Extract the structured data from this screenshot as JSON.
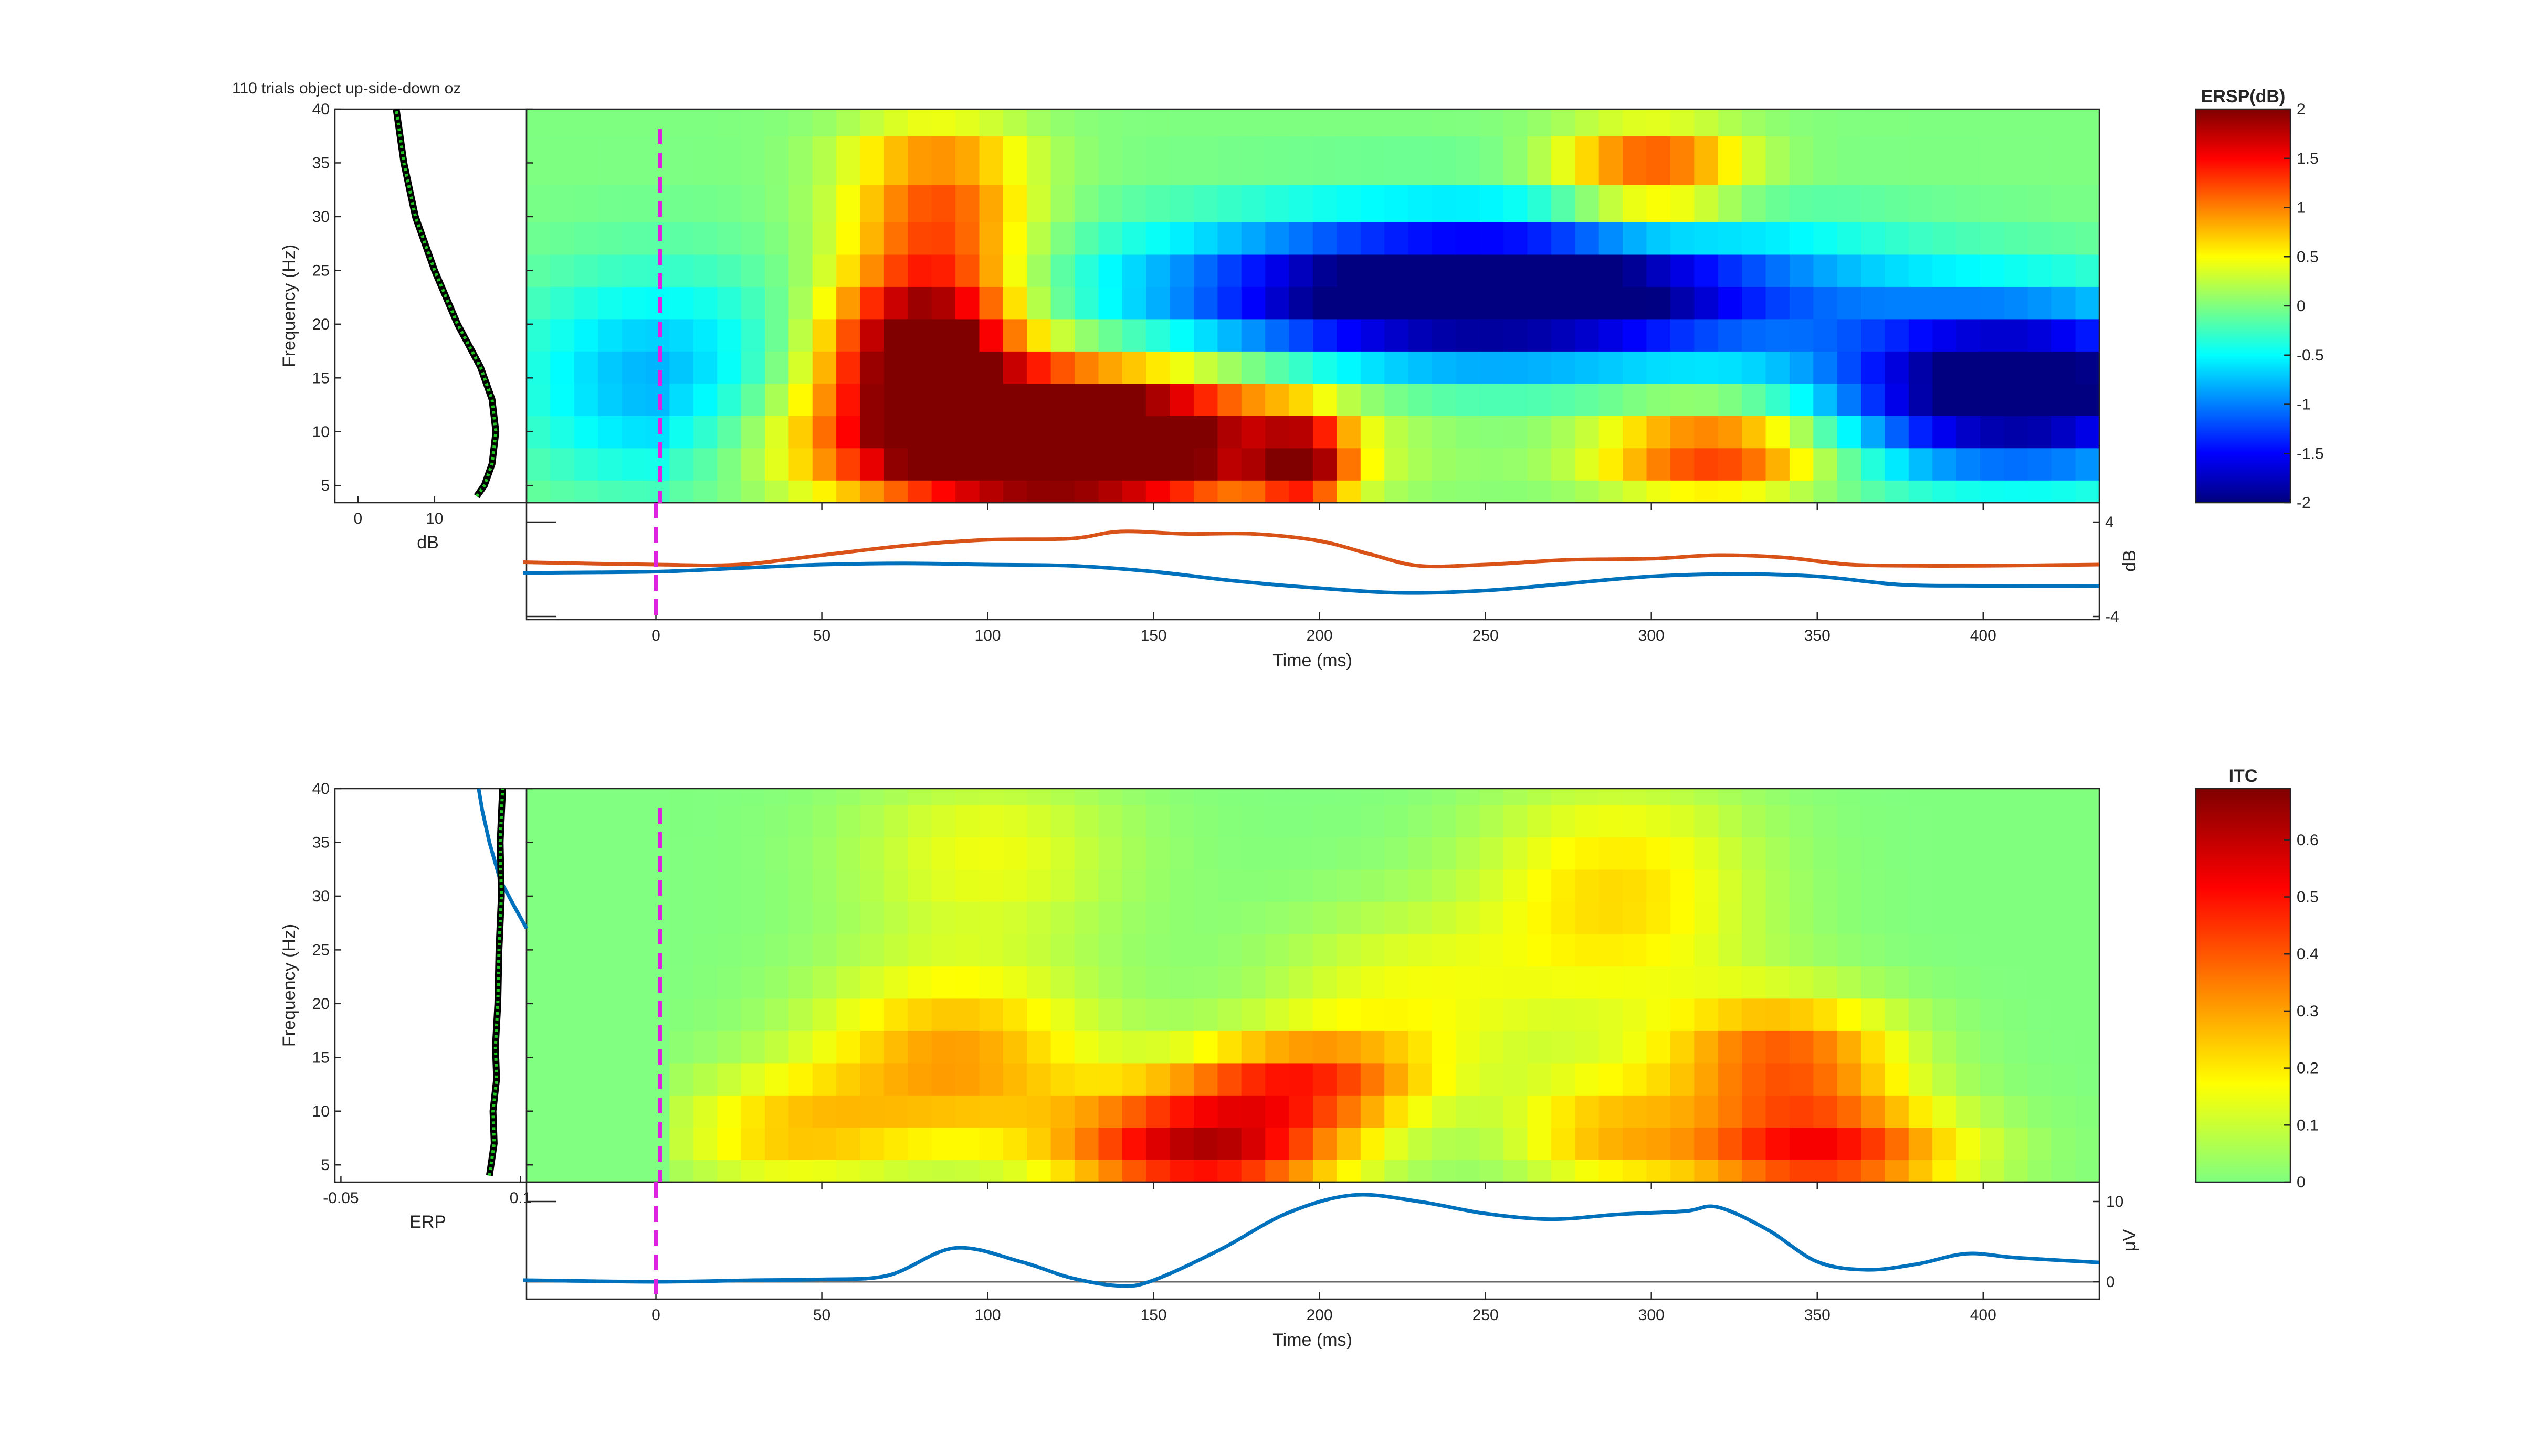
{
  "figure": {
    "title": "110 trials object up-side-down oz",
    "colors": {
      "baseline_marker": "#e020e0",
      "mean_dB_line": "#d95319",
      "mean_trace_line": "#0072bd",
      "marginal_line": "#000000",
      "marginal_dots": "#22c822"
    }
  },
  "ersp_panel": {
    "ylabel": "Frequency (Hz)",
    "yticks": [
      "40",
      "35",
      "30",
      "25",
      "20",
      "15",
      "10",
      "5"
    ],
    "colorbar": {
      "title": "ERSP(dB)",
      "ticks": [
        "2",
        "1.5",
        "1",
        "0.5",
        "0",
        "-0.5",
        "-1",
        "-1.5",
        "-2"
      ],
      "range": [
        -2,
        2
      ],
      "colormap": "jet"
    },
    "marginal": {
      "xlabel": "dB",
      "xticks": [
        "0",
        "10"
      ],
      "xrange": [
        -3,
        22
      ],
      "freqs": [
        4,
        5,
        7,
        10,
        13,
        16,
        20,
        25,
        30,
        35,
        40
      ],
      "values": [
        15.5,
        16.5,
        17.5,
        18,
        17.5,
        16,
        13,
        10,
        7.5,
        6,
        5
      ]
    },
    "trace": {
      "xlabel": "Time (ms)",
      "ylabel": "dB",
      "yticks": [
        "4",
        "-4"
      ],
      "yrange": [
        -4,
        4
      ],
      "upper_line": {
        "t": [
          -40,
          0,
          25,
          50,
          75,
          100,
          125,
          140,
          160,
          180,
          200,
          215,
          230,
          250,
          275,
          300,
          320,
          340,
          360,
          380,
          400,
          435
        ],
        "v": [
          0.6,
          0.4,
          0.4,
          1.2,
          2.0,
          2.5,
          2.6,
          3.2,
          3.0,
          3.0,
          2.4,
          1.3,
          0.3,
          0.4,
          0.8,
          0.9,
          1.2,
          1.0,
          0.4,
          0.3,
          0.3,
          0.4
        ]
      },
      "lower_line": {
        "t": [
          -40,
          0,
          25,
          50,
          75,
          100,
          125,
          150,
          175,
          200,
          225,
          250,
          275,
          300,
          325,
          350,
          375,
          400,
          435
        ],
        "v": [
          -0.3,
          -0.2,
          0.1,
          0.4,
          0.5,
          0.4,
          0.3,
          -0.2,
          -1.0,
          -1.6,
          -2.0,
          -1.8,
          -1.2,
          -0.6,
          -0.4,
          -0.6,
          -1.3,
          -1.4,
          -1.4
        ]
      }
    },
    "heatmap": {
      "type": "heatmap",
      "x_range_ms": [
        -39,
        435
      ],
      "freqs": [
        4,
        7,
        10,
        13,
        16,
        19,
        22,
        25,
        28,
        31,
        35,
        40
      ],
      "f_range": [
        3.4,
        40
      ],
      "blobs": [
        {
          "t": 120,
          "f": 9,
          "st": 45,
          "sf": 4.5,
          "a": 3.6
        },
        {
          "t": 80,
          "f": 18,
          "st": 20,
          "sf": 4.5,
          "a": 2.0
        },
        {
          "t": 85,
          "f": 30,
          "st": 20,
          "sf": 7,
          "a": 1.2
        },
        {
          "t": 250,
          "f": 23,
          "st": 65,
          "sf": 4.5,
          "a": -2.8
        },
        {
          "t": 410,
          "f": 14,
          "st": 40,
          "sf": 5.5,
          "a": -2.4
        },
        {
          "t": 320,
          "f": 8,
          "st": 25,
          "sf": 3,
          "a": 1.4
        },
        {
          "t": 300,
          "f": 34,
          "st": 20,
          "sf": 4,
          "a": 1.2
        },
        {
          "t": 0,
          "f": 15,
          "st": 30,
          "sf": 7,
          "a": -0.8
        },
        {
          "t": 195,
          "f": 7,
          "st": 10,
          "sf": 3,
          "a": 1.5
        }
      ]
    }
  },
  "itc_panel": {
    "ylabel": "Frequency (Hz)",
    "yticks": [
      "40",
      "35",
      "30",
      "25",
      "20",
      "15",
      "10",
      "5"
    ],
    "colorbar": {
      "title": "ITC",
      "ticks": [
        "0.6",
        "0.5",
        "0.4",
        "0.3",
        "0.2",
        "0.1",
        "0"
      ],
      "range": [
        0,
        0.69
      ],
      "colormap": "jet_upper_half"
    },
    "marginal": {
      "xlabel": "ERP",
      "xticks": [
        "-0.05",
        "0.1"
      ],
      "xrange": [
        -0.055,
        0.105
      ],
      "freqs": [
        4,
        7,
        10,
        13,
        16,
        20,
        25,
        30,
        35,
        40
      ],
      "itc_values": [
        0.074,
        0.078,
        0.077,
        0.08,
        0.079,
        0.081,
        0.082,
        0.084,
        0.083,
        0.085
      ],
      "erp_curve": {
        "x": [
          0.065,
          0.068,
          0.074,
          0.083,
          0.095,
          0.105
        ],
        "y": [
          40,
          38,
          35,
          31.5,
          29,
          27
        ]
      }
    },
    "trace": {
      "xlabel": "Time (ms)",
      "ylabel": "μV",
      "yticks": [
        "10",
        "0"
      ],
      "yrange": [
        -1,
        10
      ],
      "erp": {
        "t": [
          -40,
          0,
          30,
          50,
          70,
          90,
          110,
          125,
          140,
          150,
          170,
          190,
          210,
          230,
          250,
          270,
          290,
          310,
          320,
          335,
          350,
          365,
          380,
          395,
          410,
          435
        ],
        "v": [
          0.2,
          0.0,
          0.2,
          0.3,
          0.8,
          4.2,
          2.5,
          0.5,
          -0.5,
          0.2,
          4.0,
          8.5,
          10.8,
          10.0,
          8.5,
          7.8,
          8.4,
          8.8,
          9.3,
          6.5,
          2.5,
          1.5,
          2.2,
          3.5,
          3.0,
          2.4
        ]
      }
    },
    "heatmap": {
      "type": "heatmap",
      "x_range_ms": [
        -39,
        435
      ],
      "freqs": [
        4,
        7,
        10,
        13,
        16,
        19,
        22,
        25,
        28,
        31,
        34,
        37,
        40
      ],
      "f_range": [
        3.4,
        40
      ],
      "blobs": [
        {
          "t": 165,
          "f": 6.5,
          "st": 30,
          "sf": 4,
          "a": 0.6
        },
        {
          "t": 350,
          "f": 6,
          "st": 30,
          "sf": 3.5,
          "a": 0.5
        },
        {
          "t": 340,
          "f": 15,
          "st": 25,
          "sf": 4,
          "a": 0.38
        },
        {
          "t": 195,
          "f": 13,
          "st": 25,
          "sf": 3,
          "a": 0.35
        },
        {
          "t": 90,
          "f": 15,
          "st": 30,
          "sf": 6,
          "a": 0.3
        },
        {
          "t": 40,
          "f": 8,
          "st": 25,
          "sf": 4,
          "a": 0.22
        },
        {
          "t": 290,
          "f": 30,
          "st": 30,
          "sf": 8,
          "a": 0.22
        },
        {
          "t": 285,
          "f": 8,
          "st": 20,
          "sf": 4,
          "a": 0.22
        },
        {
          "t": 100,
          "f": 34,
          "st": 30,
          "sf": 6,
          "a": 0.15
        },
        {
          "t": 225,
          "f": 20,
          "st": 30,
          "sf": 6,
          "a": 0.15
        }
      ]
    }
  },
  "time_axis": {
    "range_ms": [
      -39,
      435
    ],
    "ticks": [
      "0",
      "50",
      "100",
      "150",
      "200",
      "250",
      "300",
      "350",
      "400"
    ]
  }
}
